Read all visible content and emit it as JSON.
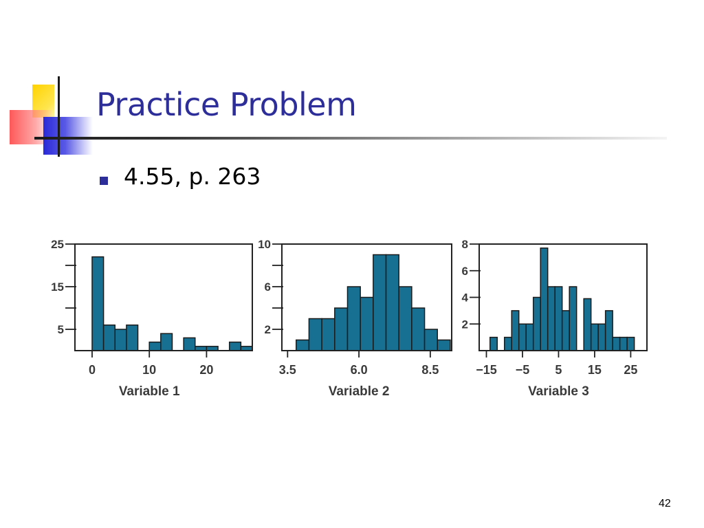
{
  "slide": {
    "title": "Practice Problem",
    "bullet": "4.55, p. 263",
    "page_number": "42"
  },
  "colors": {
    "title": "#2e2e9a",
    "bar_fill": "#176f91",
    "bar_stroke": "#1b1b1b"
  },
  "chart_data": [
    {
      "type": "bar",
      "title": "",
      "xlabel": "Variable 1",
      "ylabel": "",
      "xlim": [
        -3,
        28
      ],
      "ylim": [
        0,
        25
      ],
      "x_ticks": [
        0,
        10,
        20
      ],
      "x_tick_labels": [
        "0",
        "10",
        "20"
      ],
      "y_ticks": [
        5,
        10,
        15,
        20,
        25
      ],
      "y_tick_labels": [
        "5",
        "",
        "15",
        "",
        "25"
      ],
      "bin_edges": [
        0,
        2,
        4,
        6,
        8,
        10,
        12,
        14,
        16,
        18,
        20,
        22,
        24,
        26,
        28
      ],
      "values": [
        22,
        6,
        5,
        6,
        0,
        2,
        4,
        0,
        3,
        1,
        1,
        0,
        2,
        1
      ],
      "grid": false
    },
    {
      "type": "bar",
      "title": "",
      "xlabel": "Variable 2",
      "ylabel": "",
      "xlim": [
        3.3,
        9.25
      ],
      "ylim": [
        0,
        10
      ],
      "x_ticks": [
        3.5,
        6.0,
        8.5
      ],
      "x_tick_labels": [
        "3.5",
        "6.0",
        "8.5"
      ],
      "y_ticks": [
        2,
        4,
        6,
        8,
        10
      ],
      "y_tick_labels": [
        "2",
        "",
        "6",
        "",
        "10"
      ],
      "bin_edges": [
        3.8,
        4.25,
        4.7,
        5.15,
        5.6,
        6.05,
        6.5,
        6.95,
        7.4,
        7.85,
        8.3,
        8.75,
        9.2
      ],
      "values": [
        1,
        3,
        3,
        4,
        6,
        5,
        9,
        9,
        6,
        4,
        2,
        1
      ],
      "grid": false
    },
    {
      "type": "bar",
      "title": "",
      "xlabel": "Variable 3",
      "ylabel": "",
      "xlim": [
        -17,
        29.5
      ],
      "ylim": [
        0,
        8
      ],
      "x_ticks": [
        -15,
        -5,
        5,
        15,
        25
      ],
      "x_tick_labels": [
        "−15",
        "−5",
        "5",
        "15",
        "25"
      ],
      "y_ticks": [
        2,
        4,
        6,
        8
      ],
      "y_tick_labels": [
        "2",
        "4",
        "6",
        "8"
      ],
      "bin_edges": [
        -14,
        -12,
        -10,
        -8,
        -6,
        -4,
        -2,
        0,
        2,
        4,
        6,
        8,
        10,
        12,
        14,
        16,
        18,
        20,
        22,
        24,
        26,
        28
      ],
      "values": [
        1,
        0,
        1,
        3,
        2,
        2,
        4,
        7.7,
        4.8,
        4.8,
        3,
        4.8,
        0,
        3.9,
        2,
        2,
        3,
        1,
        1,
        1,
        0
      ],
      "grid": false
    }
  ]
}
